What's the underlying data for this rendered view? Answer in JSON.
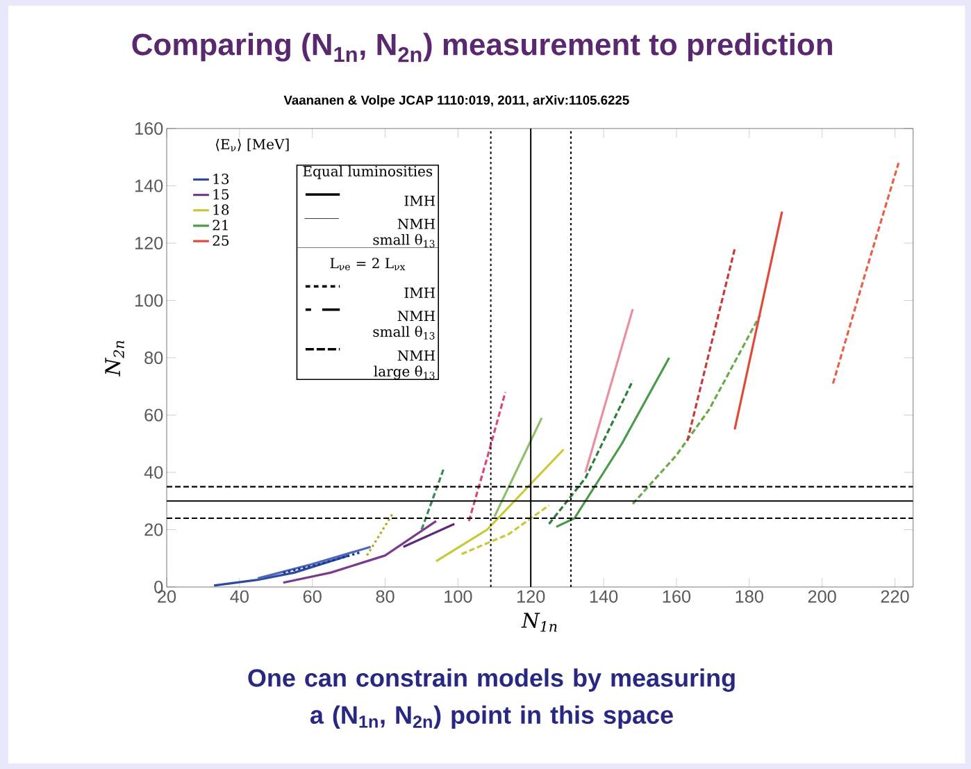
{
  "chart_data": {
    "type": "line",
    "title": "Comparing (N$_{1n}$, N$_{2n}$) measurement to prediction",
    "subtitle": "Vaananen & Volpe JCAP 1110:019, 2011, arXiv:1105.6225",
    "xlabel": "N$_{1n}$",
    "ylabel": "N$_{2n}$",
    "legend_title": "⟨E$_{ν}$⟩ [MeV]",
    "legend": "top left",
    "xlim": [
      20,
      225
    ],
    "ylim": [
      0,
      160
    ],
    "xticks": [
      20,
      40,
      60,
      80,
      100,
      120,
      140,
      160,
      180,
      200,
      220
    ],
    "yticks": [
      0,
      20,
      40,
      60,
      80,
      100,
      120,
      140,
      160
    ],
    "series": [
      {
        "name": "13",
        "color": "#2d4aa0",
        "line_style": "solid",
        "x": [
          33,
          45,
          55,
          70
        ],
        "values": [
          0.5,
          2.5,
          5,
          11
        ]
      },
      {
        "color": "#4a66c0",
        "line_style": "solid",
        "x": [
          45,
          60,
          76
        ],
        "values": [
          3,
          8,
          14
        ]
      },
      {
        "color": "#1e3480",
        "line_style": "dotted",
        "x": [
          52,
          62,
          73
        ],
        "values": [
          5,
          8,
          12
        ]
      },
      {
        "name": "15",
        "color": "#7a3a8e",
        "line_style": "solid",
        "x": [
          52,
          65,
          80,
          94
        ],
        "values": [
          1.5,
          5,
          11,
          23
        ]
      },
      {
        "color": "#5e2a78",
        "line_style": "solid",
        "x": [
          85,
          99
        ],
        "values": [
          14,
          22
        ]
      },
      {
        "color": "#d84a70",
        "line_style": "dashed",
        "x": [
          103,
          108,
          113
        ],
        "values": [
          23,
          45,
          68
        ]
      },
      {
        "name": "18",
        "color": "#c9c935",
        "line_style": "solid",
        "x": [
          94,
          108,
          120,
          129
        ],
        "values": [
          9,
          20,
          36,
          48
        ]
      },
      {
        "color": "#c9c935",
        "line_style": "dashed",
        "x": [
          101,
          114,
          125
        ],
        "values": [
          11.5,
          18.5,
          28.5
        ]
      },
      {
        "color": "#8fbf6a",
        "line_style": "solid",
        "x": [
          110,
          123
        ],
        "values": [
          24.5,
          59
        ]
      },
      {
        "color": "#b0b020",
        "line_style": "dotted",
        "x": [
          75,
          82
        ],
        "values": [
          11,
          25.5
        ]
      },
      {
        "color": "#3a8a5a",
        "line_style": "dashed",
        "x": [
          90,
          96
        ],
        "values": [
          20,
          41
        ]
      },
      {
        "name": "21",
        "color": "#4a9a4a",
        "line_style": "solid",
        "x": [
          127,
          132,
          145,
          158
        ],
        "values": [
          21,
          24,
          50,
          80
        ]
      },
      {
        "color": "#2e7d3a",
        "line_style": "dashed",
        "x": [
          125,
          135,
          148
        ],
        "values": [
          22,
          38,
          72
        ]
      },
      {
        "color": "#6aaa4a",
        "line_style": "dashed",
        "x": [
          148,
          160,
          169,
          183
        ],
        "values": [
          29,
          46,
          62,
          95
        ]
      },
      {
        "name": "25",
        "color": "#e04a3a",
        "line_style": "solid",
        "x": [
          176,
          189
        ],
        "values": [
          55,
          131
        ]
      },
      {
        "color": "#c83a3a",
        "line_style": "dashed",
        "x": [
          163,
          176
        ],
        "values": [
          51,
          118
        ]
      },
      {
        "color": "#e8604a",
        "line_style": "dashed",
        "x": [
          203,
          212,
          221
        ],
        "values": [
          71,
          110,
          148
        ]
      },
      {
        "color": "#e890a0",
        "line_style": "solid",
        "x": [
          135,
          148
        ],
        "values": [
          40,
          97
        ]
      }
    ],
    "ref_lines": [
      {
        "axis": "x",
        "value": 109,
        "line_style": "dotted"
      },
      {
        "axis": "x",
        "value": 120,
        "line_style": "solid"
      },
      {
        "axis": "x",
        "value": 131,
        "line_style": "dotted"
      },
      {
        "axis": "y",
        "value": 35,
        "line_style": "dashed"
      },
      {
        "axis": "y",
        "value": 30,
        "line_style": "solid"
      },
      {
        "axis": "y",
        "value": 24,
        "line_style": "dashed"
      }
    ],
    "annotations": [
      "One can constrain models by measuring a (N$_{1n}$, N$_{2n}$) point in this space",
      "Equal luminosities",
      "IMH",
      "NMH small θ$_{13}$",
      "L$_{νe}$ = 2 L$_{νx}$",
      "IMH",
      "NMH small θ$_{13}$",
      "NMH large θ$_{13}$"
    ]
  }
}
